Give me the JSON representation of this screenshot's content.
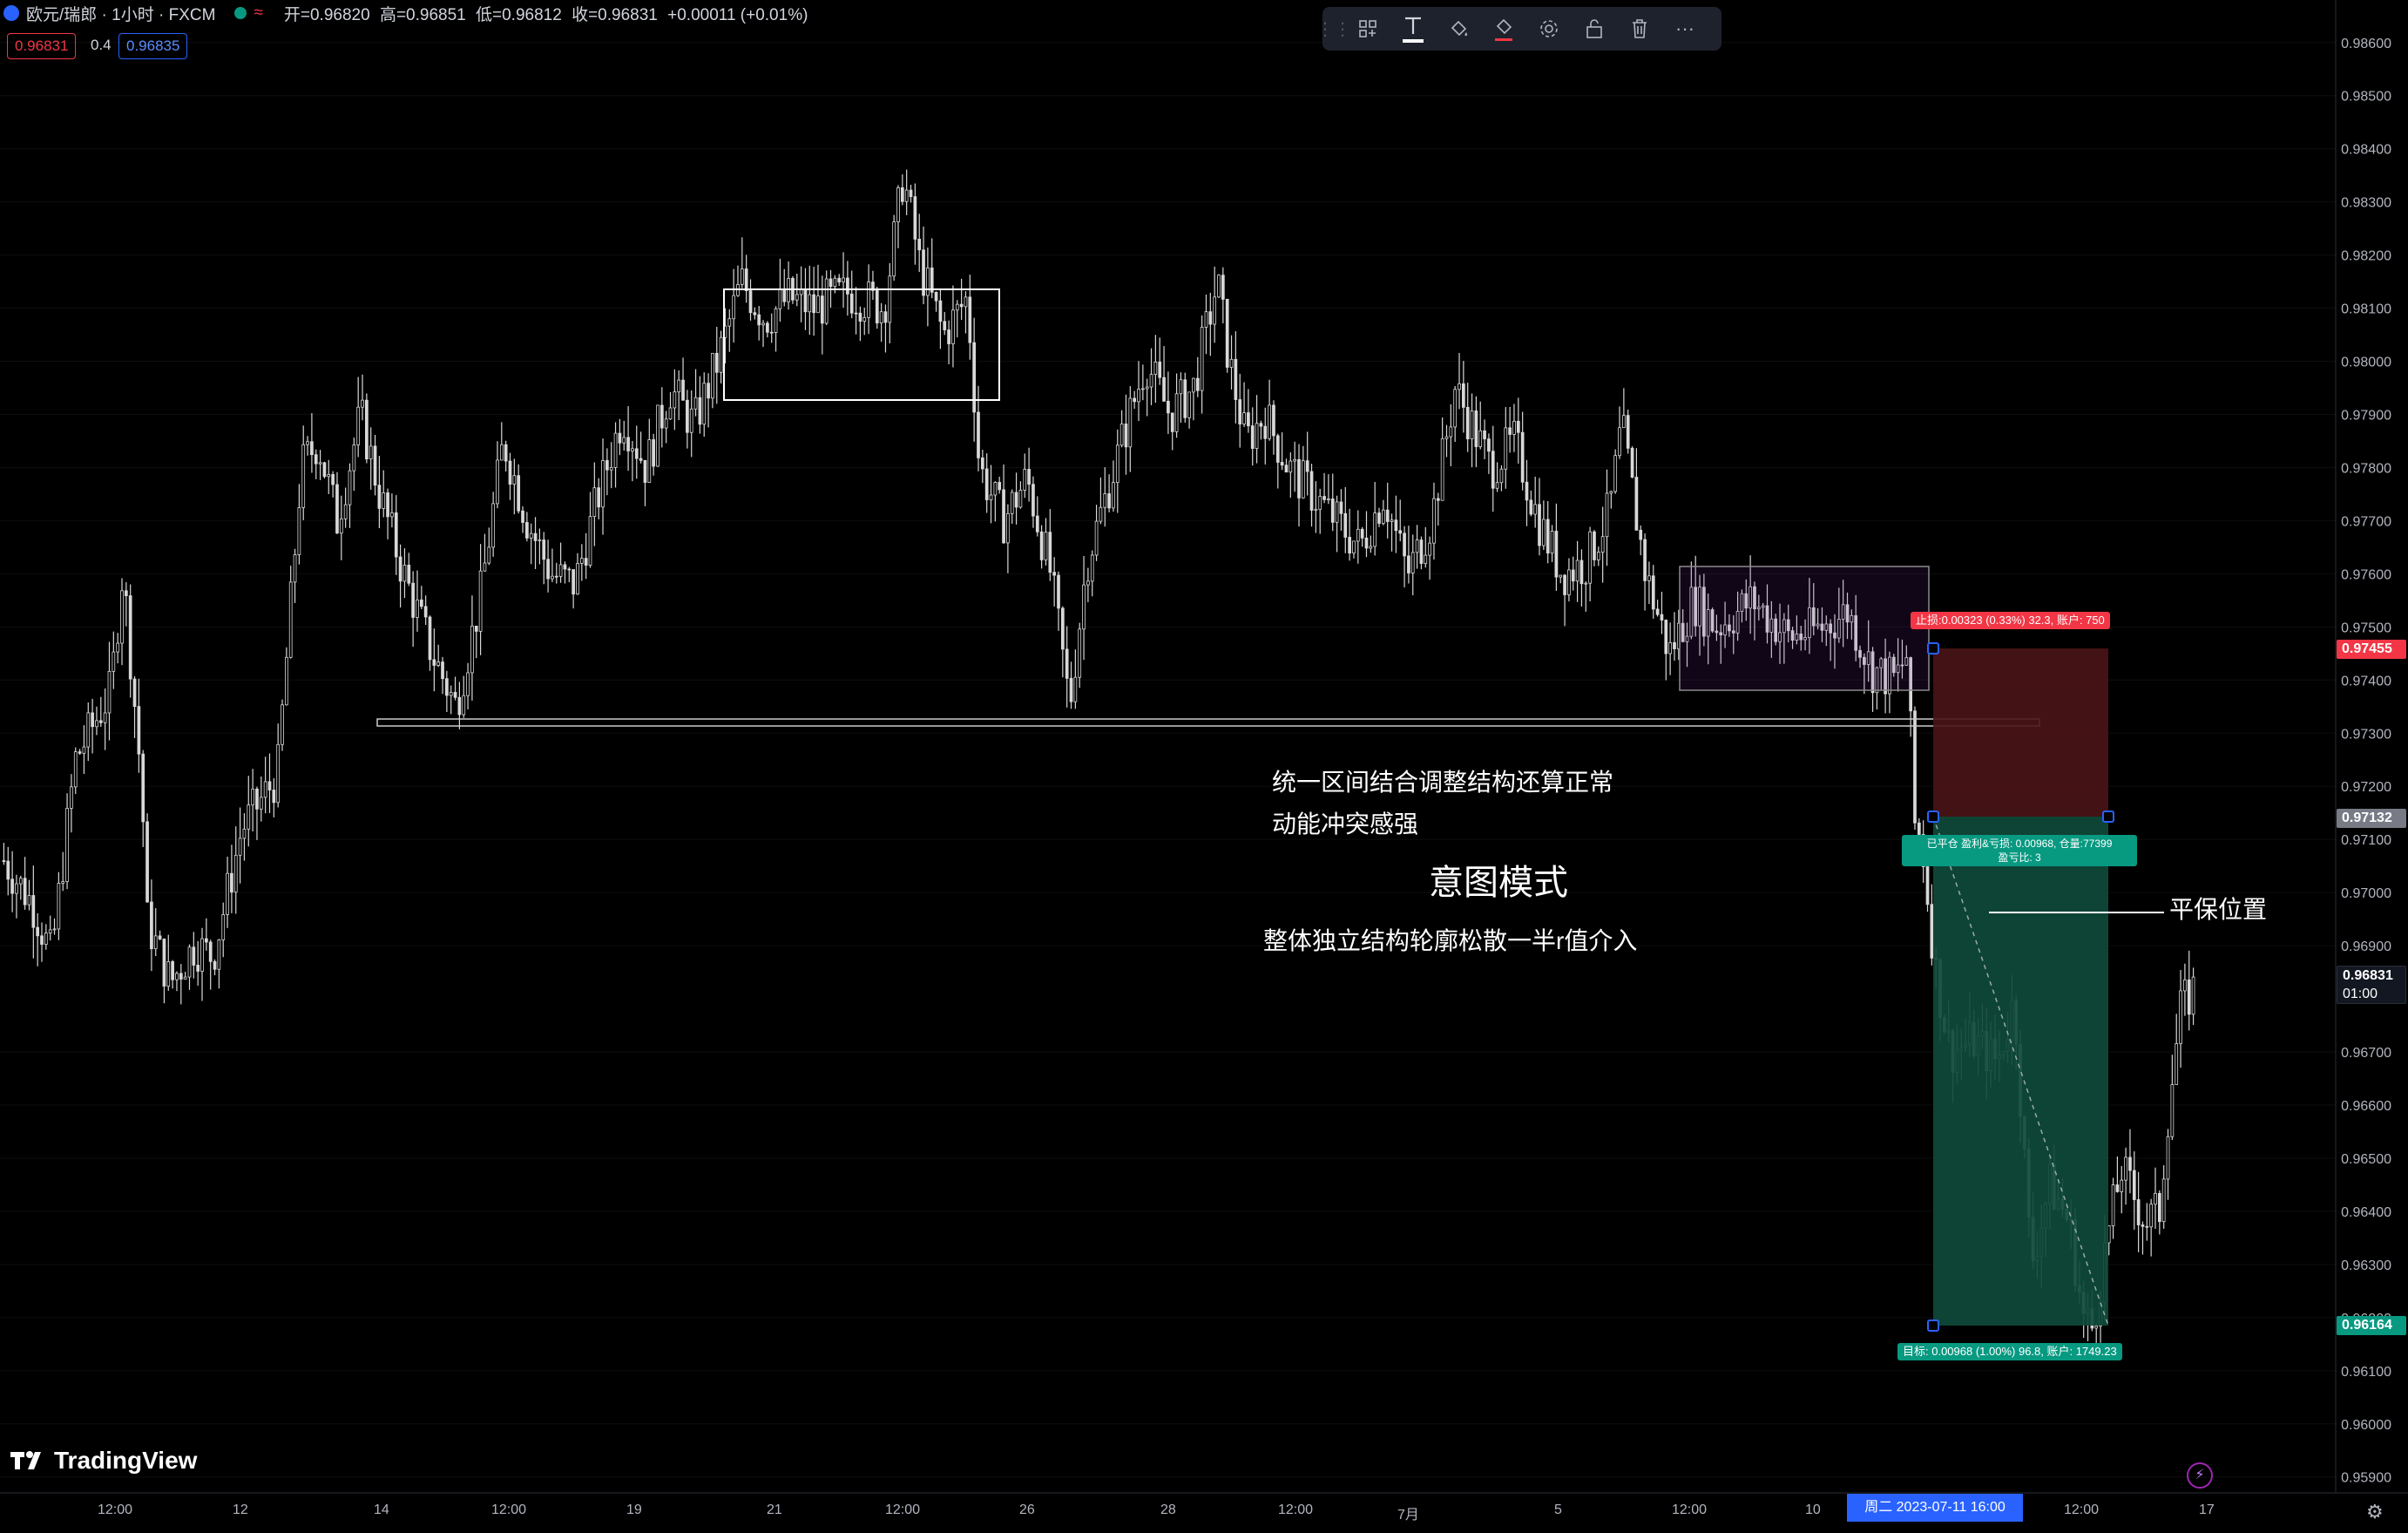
{
  "header": {
    "symbol": "欧元/瑞郎 · 1小时 · FXCM",
    "open": "开=0.96820",
    "high": "高=0.96851",
    "low": "低=0.96812",
    "close": "收=0.96831",
    "change": "+0.00011 (+0.01%)",
    "sell_price": "0.96831",
    "spread": "0.4",
    "buy_price": "0.96835"
  },
  "toolbar": {
    "items": [
      "drag-handle",
      "group-icon",
      "text-icon",
      "fill-icon",
      "line-color-icon",
      "settings-icon",
      "lock-icon",
      "delete-icon",
      "more-icon"
    ]
  },
  "annotations": {
    "line1": "统一区间结合调整结构还算正常",
    "line2": "动能冲突感强",
    "title": "意图模式",
    "line3": "整体独立结构轮廓松散一半r值介入",
    "breakeven": "平保位置"
  },
  "position": {
    "stop_label": "止损:0.00323 (0.33%) 32.3, 账户: 750",
    "closed_label_1": "已平仓 盈利&亏损: 0.00968, 仓量:77399",
    "closed_label_2": "盈亏比: 3",
    "target_label": "目标: 0.00968 (1.00%) 96.8, 账户: 1749.23"
  },
  "price_tags": {
    "stop": "0.97455",
    "entry": "0.97132",
    "last": "0.96831",
    "countdown": "01:00",
    "target": "0.96164"
  },
  "time_axis": {
    "labels": [
      "12:00",
      "12",
      "14",
      "12:00",
      "19",
      "21",
      "12:00",
      "26",
      "28",
      "12:00",
      "7月",
      "5",
      "12:00",
      "10",
      "12:00",
      "17"
    ],
    "crosshair": "周二 2023-07-11   16:00"
  },
  "logo": "TradingView",
  "colors": {
    "background": "#000000",
    "candle": "#d8d8d8",
    "stop_zone": "#4a1416",
    "target_zone": "#0f4a3a",
    "red": "#f23645",
    "green": "#089981",
    "blue": "#2962ff"
  },
  "chart_data": {
    "type": "candlestick",
    "y_axis_ticks": [
      "0.98600",
      "0.98500",
      "0.98400",
      "0.98300",
      "0.98200",
      "0.98100",
      "0.98000",
      "0.97900",
      "0.97800",
      "0.97700",
      "0.97600",
      "0.97500",
      "0.97400",
      "0.97300",
      "0.97200",
      "0.97100",
      "0.97000",
      "0.96900",
      "0.96700",
      "0.96600",
      "0.96500",
      "0.96400",
      "0.96300",
      "0.96200",
      "0.96100",
      "0.96000",
      "0.95900"
    ],
    "ylim": [
      0.9587,
      0.9868
    ],
    "close_path": [
      [
        0,
        0.9706
      ],
      [
        0.012,
        0.9698
      ],
      [
        0.02,
        0.9688
      ],
      [
        0.03,
        0.9725
      ],
      [
        0.045,
        0.9738
      ],
      [
        0.05,
        0.9761
      ],
      [
        0.058,
        0.972
      ],
      [
        0.06,
        0.9695
      ],
      [
        0.07,
        0.9683
      ],
      [
        0.08,
        0.969
      ],
      [
        0.088,
        0.9688
      ],
      [
        0.1,
        0.9712
      ],
      [
        0.115,
        0.9722
      ],
      [
        0.125,
        0.978
      ],
      [
        0.132,
        0.9785
      ],
      [
        0.14,
        0.977
      ],
      [
        0.15,
        0.979
      ],
      [
        0.158,
        0.9775
      ],
      [
        0.168,
        0.976
      ],
      [
        0.18,
        0.9745
      ],
      [
        0.19,
        0.9735
      ],
      [
        0.2,
        0.9755
      ],
      [
        0.21,
        0.9785
      ],
      [
        0.22,
        0.977
      ],
      [
        0.23,
        0.976
      ],
      [
        0.24,
        0.9758
      ],
      [
        0.25,
        0.9775
      ],
      [
        0.26,
        0.979
      ],
      [
        0.27,
        0.978
      ],
      [
        0.28,
        0.9795
      ],
      [
        0.29,
        0.9788
      ],
      [
        0.3,
        0.98
      ],
      [
        0.31,
        0.9815
      ],
      [
        0.32,
        0.9808
      ],
      [
        0.33,
        0.9812
      ],
      [
        0.34,
        0.981
      ],
      [
        0.355,
        0.9813
      ],
      [
        0.37,
        0.981
      ],
      [
        0.378,
        0.9835
      ],
      [
        0.385,
        0.9818
      ],
      [
        0.395,
        0.9805
      ],
      [
        0.405,
        0.9812
      ],
      [
        0.41,
        0.978
      ],
      [
        0.42,
        0.977
      ],
      [
        0.43,
        0.9778
      ],
      [
        0.44,
        0.976
      ],
      [
        0.448,
        0.9735
      ],
      [
        0.455,
        0.9762
      ],
      [
        0.47,
        0.9785
      ],
      [
        0.48,
        0.98
      ],
      [
        0.49,
        0.979
      ],
      [
        0.5,
        0.9795
      ],
      [
        0.51,
        0.9815
      ],
      [
        0.515,
        0.98
      ],
      [
        0.522,
        0.9785
      ],
      [
        0.53,
        0.979
      ],
      [
        0.54,
        0.978
      ],
      [
        0.55,
        0.9775
      ],
      [
        0.56,
        0.977
      ],
      [
        0.57,
        0.9765
      ],
      [
        0.58,
        0.9775
      ],
      [
        0.59,
        0.976
      ],
      [
        0.6,
        0.977
      ],
      [
        0.61,
        0.9795
      ],
      [
        0.617,
        0.9788
      ],
      [
        0.625,
        0.978
      ],
      [
        0.635,
        0.9785
      ],
      [
        0.645,
        0.977
      ],
      [
        0.655,
        0.976
      ],
      [
        0.665,
        0.9762
      ],
      [
        0.675,
        0.9772
      ],
      [
        0.68,
        0.9788
      ],
      [
        0.69,
        0.976
      ],
      [
        0.7,
        0.9745
      ],
      [
        0.71,
        0.9755
      ],
      [
        0.72,
        0.975
      ],
      [
        0.735,
        0.9755
      ],
      [
        0.75,
        0.9748
      ],
      [
        0.765,
        0.975
      ],
      [
        0.775,
        0.9753
      ],
      [
        0.785,
        0.9742
      ],
      [
        0.795,
        0.974
      ],
      [
        0.8,
        0.9745
      ],
      [
        0.803,
        0.9713
      ],
      [
        0.806,
        0.971
      ],
      [
        0.812,
        0.9685
      ],
      [
        0.818,
        0.967
      ],
      [
        0.828,
        0.9672
      ],
      [
        0.838,
        0.9668
      ],
      [
        0.845,
        0.968
      ],
      [
        0.852,
        0.963
      ],
      [
        0.86,
        0.9645
      ],
      [
        0.868,
        0.9638
      ],
      [
        0.874,
        0.962
      ],
      [
        0.878,
        0.9618
      ],
      [
        0.884,
        0.9635
      ],
      [
        0.89,
        0.9648
      ],
      [
        0.9,
        0.9638
      ],
      [
        0.906,
        0.964
      ],
      [
        0.91,
        0.966
      ],
      [
        0.915,
        0.9678
      ],
      [
        0.922,
        0.9683
      ]
    ]
  }
}
